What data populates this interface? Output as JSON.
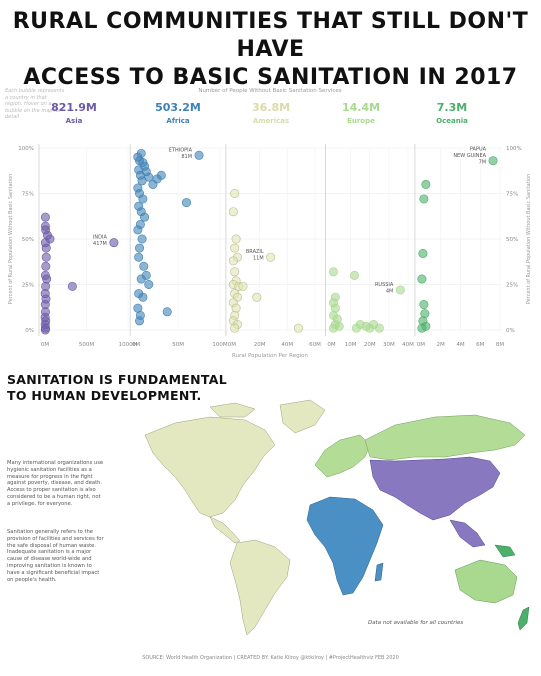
{
  "title_line1": "RURAL COMMUNITIES THAT STILL DON'T HAVE",
  "title_line2": "ACCESS TO BASIC SANITATION IN 2017",
  "bubble_note": "Each bubble represents a country in that region. Hover on a bubble on the map for detail",
  "header_label": "Number of People Without Basic Sanitation Services",
  "regions": [
    {
      "name": "Asia",
      "total": "821.9M",
      "color": "#6b5aa6"
    },
    {
      "name": "Africa",
      "total": "503.2M",
      "color": "#3f82b5"
    },
    {
      "name": "Americas",
      "total": "36.8M",
      "color": "#dfe4b5"
    },
    {
      "name": "Europe",
      "total": "14.4M",
      "color": "#a9d88f"
    },
    {
      "name": "Oceania",
      "total": "7.3M",
      "color": "#4caf6a"
    }
  ],
  "chart_data": {
    "type": "scatter",
    "y_axis_label": "Percent of Rural Population Without Basic Sanitation",
    "x_axis_label": "Rural Population Per Region",
    "y_ticks": [
      "100%",
      "75%",
      "50%",
      "25%",
      "0%"
    ],
    "ylim": [
      0,
      100
    ],
    "panels": [
      {
        "region": "Asia",
        "x_ticks": [
          "0M",
          "500M",
          "1000M"
        ],
        "xlim": [
          -60,
          1000
        ],
        "points": [
          {
            "x": 5,
            "y": 62
          },
          {
            "x": 5,
            "y": 57
          },
          {
            "x": 8,
            "y": 55
          },
          {
            "x": 5,
            "y": 48
          },
          {
            "x": 15,
            "y": 40
          },
          {
            "x": 10,
            "y": 35
          },
          {
            "x": 5,
            "y": 30
          },
          {
            "x": 20,
            "y": 28
          },
          {
            "x": 8,
            "y": 24
          },
          {
            "x": 3,
            "y": 20
          },
          {
            "x": 12,
            "y": 17
          },
          {
            "x": 4,
            "y": 14
          },
          {
            "x": 6,
            "y": 10
          },
          {
            "x": 2,
            "y": 7
          },
          {
            "x": 9,
            "y": 5
          },
          {
            "x": 3,
            "y": 3
          },
          {
            "x": 7,
            "y": 1
          },
          {
            "x": 4,
            "y": 0
          },
          {
            "x": 30,
            "y": 52
          },
          {
            "x": 60,
            "y": 50
          },
          {
            "x": 15,
            "y": 45
          },
          {
            "x": 330,
            "y": 24
          },
          {
            "x": 830,
            "y": 48
          }
        ],
        "labels": [
          {
            "text": "INDIA",
            "value": "417M",
            "x": 830,
            "y": 48
          }
        ]
      },
      {
        "region": "Africa",
        "x_ticks": [
          "0M",
          "50M",
          "100M"
        ],
        "xlim": [
          -5,
          100
        ],
        "points": [
          {
            "x": 2,
            "y": 95
          },
          {
            "x": 4,
            "y": 93
          },
          {
            "x": 6,
            "y": 97
          },
          {
            "x": 8,
            "y": 92
          },
          {
            "x": 3,
            "y": 88
          },
          {
            "x": 10,
            "y": 90
          },
          {
            "x": 12,
            "y": 87
          },
          {
            "x": 5,
            "y": 85
          },
          {
            "x": 7,
            "y": 82
          },
          {
            "x": 15,
            "y": 84
          },
          {
            "x": 20,
            "y": 80
          },
          {
            "x": 25,
            "y": 83
          },
          {
            "x": 30,
            "y": 85
          },
          {
            "x": 2,
            "y": 78
          },
          {
            "x": 4,
            "y": 75
          },
          {
            "x": 8,
            "y": 72
          },
          {
            "x": 3,
            "y": 68
          },
          {
            "x": 6,
            "y": 65
          },
          {
            "x": 10,
            "y": 62
          },
          {
            "x": 5,
            "y": 58
          },
          {
            "x": 2,
            "y": 55
          },
          {
            "x": 7,
            "y": 50
          },
          {
            "x": 4,
            "y": 45
          },
          {
            "x": 3,
            "y": 40
          },
          {
            "x": 9,
            "y": 35
          },
          {
            "x": 12,
            "y": 30
          },
          {
            "x": 6,
            "y": 28
          },
          {
            "x": 15,
            "y": 25
          },
          {
            "x": 3,
            "y": 20
          },
          {
            "x": 8,
            "y": 18
          },
          {
            "x": 2,
            "y": 12
          },
          {
            "x": 5,
            "y": 8
          },
          {
            "x": 4,
            "y": 5
          },
          {
            "x": 37,
            "y": 10
          },
          {
            "x": 60,
            "y": 70
          },
          {
            "x": 75,
            "y": 96
          }
        ],
        "labels": [
          {
            "text": "ETHIOPIA",
            "value": "81M",
            "x": 75,
            "y": 96
          }
        ]
      },
      {
        "region": "Americas",
        "x_ticks": [
          "0M",
          "20M",
          "40M",
          "60M"
        ],
        "xlim": [
          -5,
          60
        ],
        "points": [
          {
            "x": 2,
            "y": 75
          },
          {
            "x": 1,
            "y": 65
          },
          {
            "x": 3,
            "y": 50
          },
          {
            "x": 2,
            "y": 45
          },
          {
            "x": 4,
            "y": 40
          },
          {
            "x": 1,
            "y": 38
          },
          {
            "x": 2,
            "y": 32
          },
          {
            "x": 3,
            "y": 27
          },
          {
            "x": 1,
            "y": 25
          },
          {
            "x": 5,
            "y": 24
          },
          {
            "x": 8,
            "y": 24
          },
          {
            "x": 2,
            "y": 20
          },
          {
            "x": 4,
            "y": 18
          },
          {
            "x": 1,
            "y": 15
          },
          {
            "x": 3,
            "y": 12
          },
          {
            "x": 2,
            "y": 8
          },
          {
            "x": 1,
            "y": 5
          },
          {
            "x": 4,
            "y": 3
          },
          {
            "x": 2,
            "y": 1
          },
          {
            "x": 18,
            "y": 18
          },
          {
            "x": 28,
            "y": 40
          },
          {
            "x": 48,
            "y": 1
          }
        ],
        "labels": [
          {
            "text": "BRAZIL",
            "value": "11M",
            "x": 28,
            "y": 40
          }
        ]
      },
      {
        "region": "Europe",
        "x_ticks": [
          "0M",
          "10M",
          "20M",
          "30M",
          "40M"
        ],
        "xlim": [
          -5,
          40
        ],
        "points": [
          {
            "x": 1,
            "y": 32
          },
          {
            "x": 2,
            "y": 18
          },
          {
            "x": 1,
            "y": 15
          },
          {
            "x": 2,
            "y": 12
          },
          {
            "x": 1,
            "y": 8
          },
          {
            "x": 3,
            "y": 6
          },
          {
            "x": 2,
            "y": 3
          },
          {
            "x": 1,
            "y": 1
          },
          {
            "x": 4,
            "y": 2
          },
          {
            "x": 12,
            "y": 30
          },
          {
            "x": 15,
            "y": 3
          },
          {
            "x": 18,
            "y": 2
          },
          {
            "x": 20,
            "y": 1
          },
          {
            "x": 22,
            "y": 3
          },
          {
            "x": 25,
            "y": 1
          },
          {
            "x": 13,
            "y": 1
          },
          {
            "x": 36,
            "y": 22
          }
        ],
        "labels": [
          {
            "text": "RUSSIA",
            "value": "4M",
            "x": 36,
            "y": 22
          }
        ]
      },
      {
        "region": "Oceania",
        "x_ticks": [
          "0M",
          "2M",
          "4M",
          "6M",
          "8M"
        ],
        "xlim": [
          -0.8,
          8
        ],
        "points": [
          {
            "x": 0.5,
            "y": 80
          },
          {
            "x": 0.3,
            "y": 72
          },
          {
            "x": 0.2,
            "y": 42
          },
          {
            "x": 0.1,
            "y": 28
          },
          {
            "x": 0.3,
            "y": 14
          },
          {
            "x": 0.4,
            "y": 9
          },
          {
            "x": 0.2,
            "y": 5
          },
          {
            "x": 0.5,
            "y": 2
          },
          {
            "x": 0.1,
            "y": 1
          },
          {
            "x": 7.3,
            "y": 93
          }
        ],
        "labels": [
          {
            "text": "PAPUA NEW GUINEA",
            "label_lines": [
              "PAPUA",
              "NEW GUINEA"
            ],
            "value": "7M",
            "x": 7.3,
            "y": 93
          }
        ]
      }
    ]
  },
  "section_title_line1": "SANITATION IS FUNDAMENTAL",
  "section_title_line2": "TO HUMAN DEVELOPMENT.",
  "paragraph1": "Many international organizations use hygienic sanitation facilities as a measure for progress in the fight against poverty, disease, and death. Access to proper sanitation is also considered to be a human right, not a privilege, for everyone.",
  "paragraph2": "Sanitation generally refers to the provision of facilities and services for the safe disposal of human waste. Inadequate sanitation is a major cause of disease world-wide and improving sanitation is known to have a significant beneficial impact on people's health.",
  "map_note": "Data not available for all countries",
  "source": "SOURCE: World Health Organization  |  CREATED BY: Katie Kilroy @ktkilroy  |  #ProjectHealthviz FEB 2020"
}
